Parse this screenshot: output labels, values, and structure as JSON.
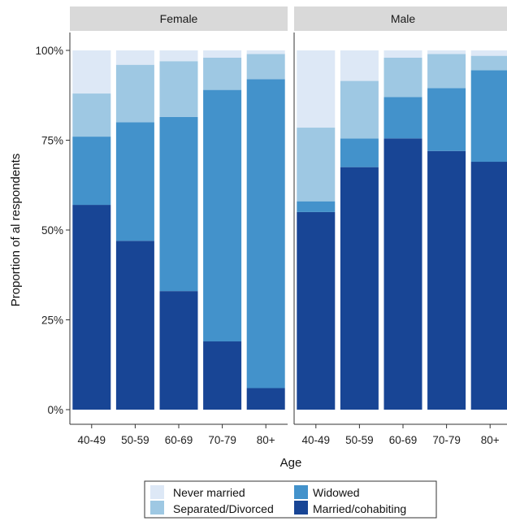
{
  "colors": {
    "never_married": "#dde8f6",
    "separated_divorced": "#9ec8e3",
    "widowed": "#4392cb",
    "married_cohabiting": "#184595",
    "strip_bg": "#d9d9d9",
    "axis": "#333333"
  },
  "chart_data": {
    "type": "bar",
    "stacked": true,
    "facets": [
      "Female",
      "Male"
    ],
    "categories": [
      "40-49",
      "50-59",
      "60-69",
      "70-79",
      "80+"
    ],
    "xlabel": "Age",
    "ylabel": "Proportion of al respondents",
    "ylim": [
      0,
      100
    ],
    "y_ticks": [
      "0%",
      "25%",
      "50%",
      "75%",
      "100%"
    ],
    "grid": false,
    "legend_position": "bottom",
    "legend": [
      "Never married",
      "Separated/Divorced",
      "Widowed",
      "Married/cohabiting"
    ],
    "series": [
      {
        "name": "Married/cohabiting",
        "color_key": "married_cohabiting",
        "Female": [
          57,
          47,
          33,
          19,
          6
        ],
        "Male": [
          55,
          67.5,
          75.5,
          72,
          69
        ]
      },
      {
        "name": "Widowed",
        "color_key": "widowed",
        "Female": [
          19,
          33,
          48.5,
          70,
          86
        ],
        "Male": [
          3,
          8,
          11.5,
          17.5,
          25.5
        ]
      },
      {
        "name": "Separated/Divorced",
        "color_key": "separated_divorced",
        "Female": [
          12,
          16,
          15.5,
          9,
          7
        ],
        "Male": [
          20.5,
          16,
          11,
          9.5,
          4
        ]
      },
      {
        "name": "Never married",
        "color_key": "never_married",
        "Female": [
          12,
          4,
          3,
          2,
          1
        ],
        "Male": [
          21.5,
          8.5,
          2,
          1,
          1.5
        ]
      }
    ]
  }
}
